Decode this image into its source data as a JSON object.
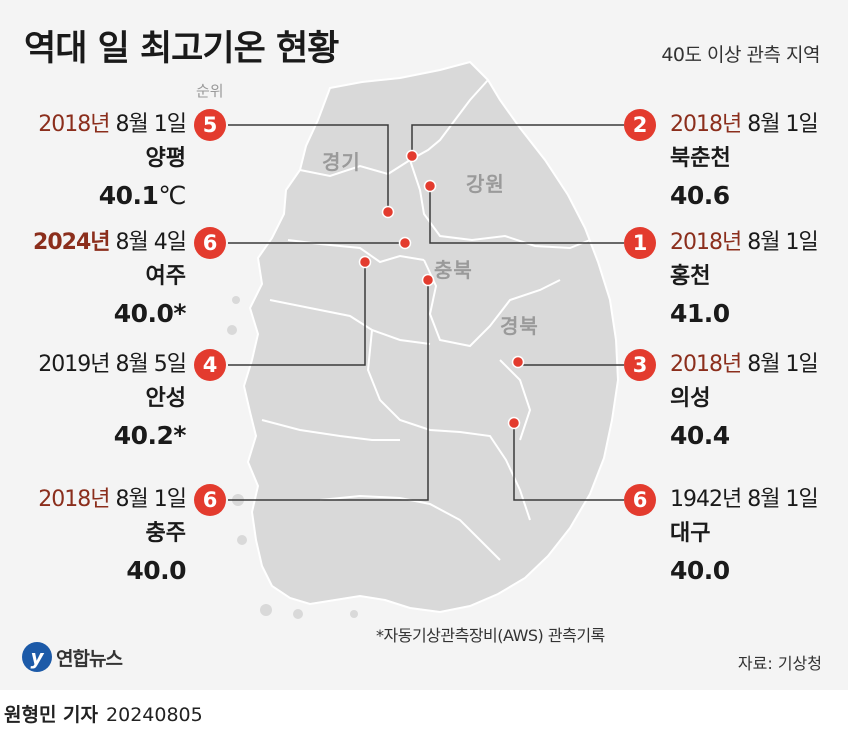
{
  "title": "역대 일 최고기온 현황",
  "subtitle": "40도 이상 관측 지역",
  "rank_label": "순위",
  "regions": {
    "gyeonggi": "경기",
    "gangwon": "강원",
    "chungbuk": "충북",
    "gyeongbuk": "경북"
  },
  "entries": [
    {
      "rank": "5",
      "year": "2018년",
      "md": " 8월 1일",
      "place": "양평",
      "temp": "40.1",
      "unit": "℃"
    },
    {
      "rank": "6",
      "year": "2024년",
      "md": " 8월 4일",
      "place": "여주",
      "temp": "40.0*"
    },
    {
      "rank": "4",
      "year": "2019년",
      "md": " 8월 5일",
      "place": "안성",
      "temp": "40.2*"
    },
    {
      "rank": "6",
      "year": "2018년",
      "md": " 8월 1일",
      "place": "충주",
      "temp": "40.0"
    },
    {
      "rank": "2",
      "year": "2018년",
      "md": " 8월 1일",
      "place": "북춘천",
      "temp": "40.6"
    },
    {
      "rank": "1",
      "year": "2018년",
      "md": " 8월 1일",
      "place": "홍천",
      "temp": "41.0"
    },
    {
      "rank": "3",
      "year": "2018년",
      "md": " 8월 1일",
      "place": "의성",
      "temp": "40.4"
    },
    {
      "rank": "6",
      "year": "1942년",
      "md": " 8월 1일",
      "place": "대구",
      "temp": "40.0"
    }
  ],
  "footnote": "*자동기상관측장비(AWS) 관측기록",
  "source": "자료: 기상청",
  "logo_text": "연합뉴스",
  "credit": {
    "author": "원형민 기자",
    "date": "20240805"
  },
  "colors": {
    "badge": "#e33b2e",
    "year_highlight": "#8b2e1c",
    "map_fill": "#d9d9d9",
    "panel": "#f4f4f4"
  }
}
